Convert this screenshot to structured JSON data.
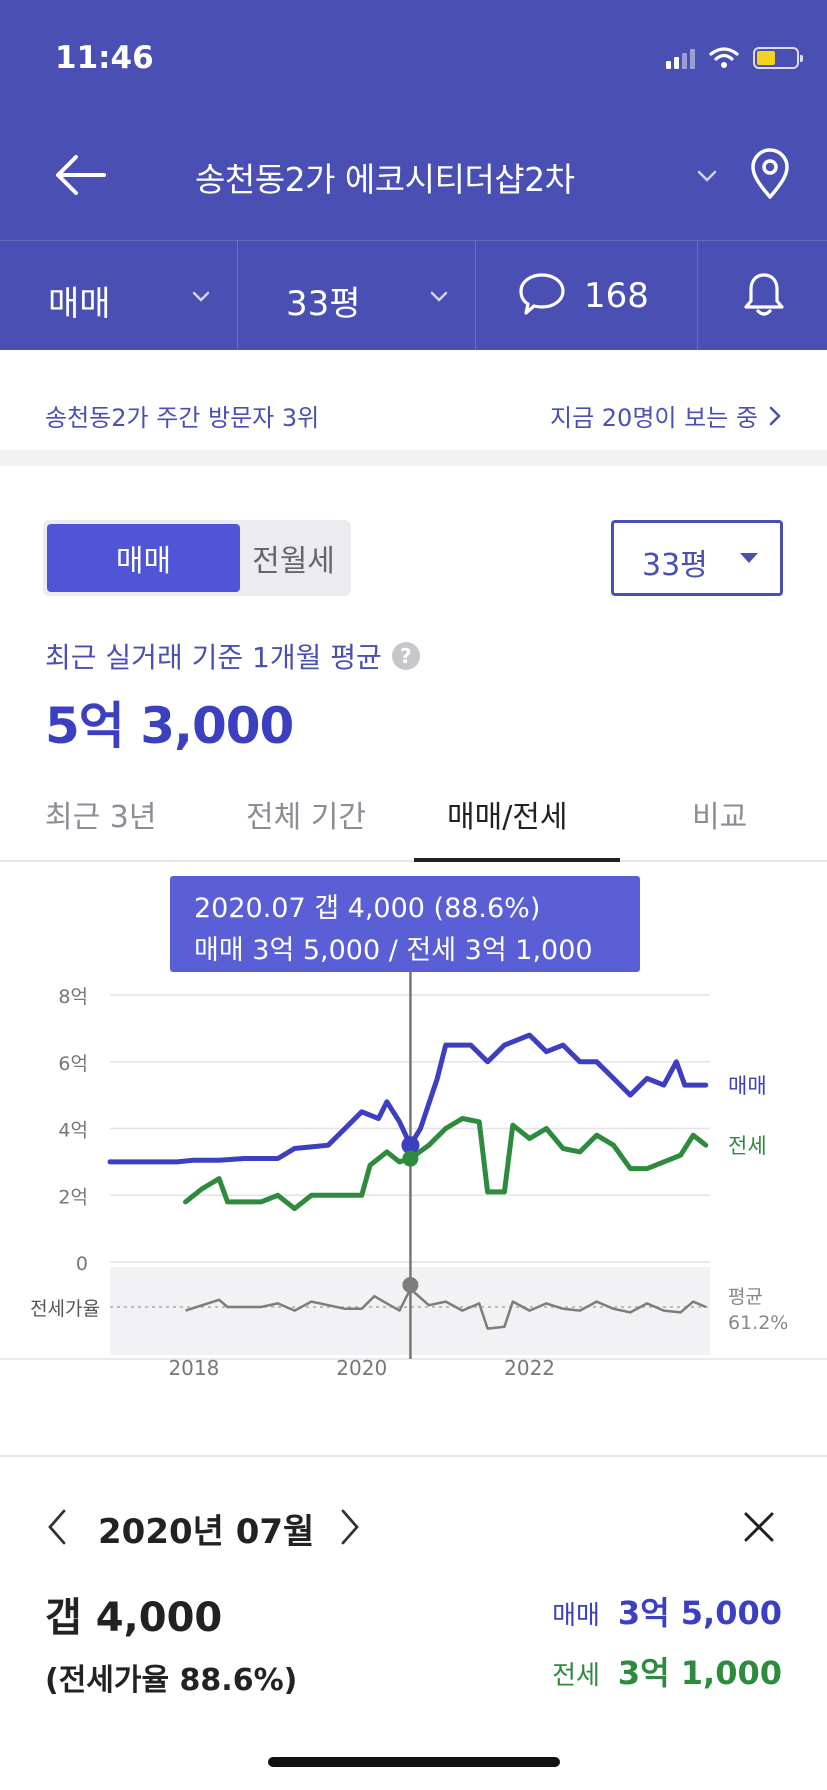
{
  "status_bar": {
    "time": "11:46"
  },
  "nav": {
    "title": "송천동2가 에코시티더샵2차"
  },
  "filters": {
    "type": "매매",
    "size": "33평",
    "comments": "168"
  },
  "notice": {
    "left": "송천동2가 주간 방문자 3위",
    "right": "지금 20명이 보는 중"
  },
  "toggle": {
    "on": "매매",
    "off": "전월세"
  },
  "size_select": "33평",
  "summary": {
    "label": "최근 실거래 기준 1개월 평균",
    "value": "5억 3,000"
  },
  "tabs": [
    "최근 3년",
    "전체 기간",
    "매매/전세",
    "비교"
  ],
  "tooltip": {
    "line1": "2020.07  갭 4,000 (88.6%)",
    "line2": "매매 3억 5,000 / 전세 3억 1,000"
  },
  "detail": {
    "date": "2020년 07월",
    "gap": "갭 4,000",
    "ratio": "(전세가율 88.6%)",
    "sale_label": "매매",
    "sale_value": "3억 5,000",
    "jeonse_label": "전세",
    "jeonse_value": "3억 1,000"
  },
  "colors": {
    "brand": "#4a4fb3",
    "sale": "#3c3fbf",
    "jeonse": "#2e8b3e",
    "ratio": "#888888"
  },
  "chart_data": {
    "type": "line",
    "y_tick_labels": [
      "8억",
      "6억",
      "4억",
      "2억",
      "0"
    ],
    "ylim": [
      0,
      8
    ],
    "x_tick_labels": [
      "2018",
      "2020",
      "2022"
    ],
    "series_labels": {
      "sale": "매매",
      "jeonse": "전세"
    },
    "ratio_label": "전세가율",
    "avg_label": "평균",
    "avg_value": "61.2%",
    "series": [
      {
        "name": "매매",
        "color": "#3c3fbf",
        "points": [
          [
            2017.0,
            3.0
          ],
          [
            2017.4,
            3.0
          ],
          [
            2017.8,
            3.0
          ],
          [
            2018.0,
            3.05
          ],
          [
            2018.3,
            3.05
          ],
          [
            2018.6,
            3.1
          ],
          [
            2019.0,
            3.1
          ],
          [
            2019.2,
            3.4
          ],
          [
            2019.4,
            3.45
          ],
          [
            2019.6,
            3.5
          ],
          [
            2019.8,
            4.0
          ],
          [
            2020.0,
            4.5
          ],
          [
            2020.2,
            4.3
          ],
          [
            2020.3,
            4.8
          ],
          [
            2020.45,
            4.2
          ],
          [
            2020.58,
            3.5
          ],
          [
            2020.7,
            4.0
          ],
          [
            2020.9,
            5.5
          ],
          [
            2021.0,
            6.5
          ],
          [
            2021.3,
            6.5
          ],
          [
            2021.5,
            6.0
          ],
          [
            2021.7,
            6.5
          ],
          [
            2022.0,
            6.8
          ],
          [
            2022.2,
            6.3
          ],
          [
            2022.4,
            6.5
          ],
          [
            2022.6,
            6.0
          ],
          [
            2022.8,
            6.0
          ],
          [
            2023.0,
            5.5
          ],
          [
            2023.2,
            5.0
          ],
          [
            2023.4,
            5.5
          ],
          [
            2023.6,
            5.3
          ],
          [
            2023.75,
            6.0
          ],
          [
            2023.85,
            5.3
          ],
          [
            2024.1,
            5.3
          ]
        ]
      },
      {
        "name": "전세",
        "color": "#2e8b3e",
        "points": [
          [
            2017.9,
            1.8
          ],
          [
            2018.1,
            2.2
          ],
          [
            2018.3,
            2.5
          ],
          [
            2018.4,
            1.8
          ],
          [
            2018.8,
            1.8
          ],
          [
            2019.0,
            2.0
          ],
          [
            2019.2,
            1.6
          ],
          [
            2019.4,
            2.0
          ],
          [
            2019.6,
            2.0
          ],
          [
            2020.0,
            2.0
          ],
          [
            2020.1,
            2.9
          ],
          [
            2020.3,
            3.3
          ],
          [
            2020.45,
            3.0
          ],
          [
            2020.58,
            3.1
          ],
          [
            2020.8,
            3.5
          ],
          [
            2021.0,
            4.0
          ],
          [
            2021.2,
            4.3
          ],
          [
            2021.4,
            4.2
          ],
          [
            2021.5,
            2.1
          ],
          [
            2021.7,
            2.1
          ],
          [
            2021.8,
            4.1
          ],
          [
            2022.0,
            3.7
          ],
          [
            2022.2,
            4.0
          ],
          [
            2022.4,
            3.4
          ],
          [
            2022.6,
            3.3
          ],
          [
            2022.8,
            3.8
          ],
          [
            2023.0,
            3.5
          ],
          [
            2023.2,
            2.8
          ],
          [
            2023.4,
            2.8
          ],
          [
            2023.6,
            3.0
          ],
          [
            2023.8,
            3.2
          ],
          [
            2023.95,
            3.8
          ],
          [
            2024.1,
            3.5
          ]
        ]
      }
    ],
    "ratio_series": [
      [
        2017.9,
        -0.2
      ],
      [
        2018.1,
        0.1
      ],
      [
        2018.3,
        0.4
      ],
      [
        2018.4,
        0.0
      ],
      [
        2018.8,
        0.0
      ],
      [
        2019.0,
        0.2
      ],
      [
        2019.2,
        -0.2
      ],
      [
        2019.4,
        0.3
      ],
      [
        2019.6,
        0.1
      ],
      [
        2019.8,
        -0.1
      ],
      [
        2020.0,
        -0.1
      ],
      [
        2020.15,
        0.6
      ],
      [
        2020.3,
        0.2
      ],
      [
        2020.45,
        -0.2
      ],
      [
        2020.58,
        1.0
      ],
      [
        2020.8,
        0.1
      ],
      [
        2021.0,
        0.3
      ],
      [
        2021.2,
        -0.2
      ],
      [
        2021.4,
        0.2
      ],
      [
        2021.5,
        -1.2
      ],
      [
        2021.7,
        -1.1
      ],
      [
        2021.8,
        0.3
      ],
      [
        2022.0,
        -0.2
      ],
      [
        2022.2,
        0.2
      ],
      [
        2022.4,
        -0.1
      ],
      [
        2022.6,
        -0.2
      ],
      [
        2022.8,
        0.3
      ],
      [
        2023.0,
        -0.1
      ],
      [
        2023.2,
        -0.3
      ],
      [
        2023.4,
        0.2
      ],
      [
        2023.6,
        -0.2
      ],
      [
        2023.8,
        -0.3
      ],
      [
        2023.95,
        0.3
      ],
      [
        2024.1,
        0.0
      ]
    ],
    "marker": {
      "x": 2020.58,
      "sale": 3.5,
      "jeonse": 3.1
    },
    "grid": true
  }
}
